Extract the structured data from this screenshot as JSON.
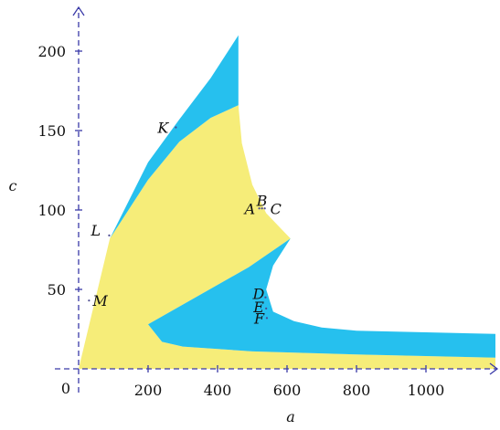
{
  "chart_data": {
    "type": "area",
    "xlabel": "a",
    "ylabel": "c",
    "xlim": [
      0,
      1200
    ],
    "ylim": [
      0,
      220
    ],
    "x_ticks": [
      200,
      400,
      600,
      800,
      1000
    ],
    "y_ticks": [
      50,
      100,
      150,
      200
    ],
    "origin_label": "0",
    "grid": false,
    "colors": {
      "yellow_region": "#f6ed79",
      "blue_region": "#26c0ee",
      "axis": "#3a3aa8"
    },
    "regions": [
      {
        "color": "yellow",
        "boundary": [
          [
            0,
            0
          ],
          [
            90,
            82
          ],
          [
            200,
            119
          ],
          [
            290,
            143
          ],
          [
            380,
            158
          ],
          [
            460,
            166
          ],
          [
            470,
            142
          ],
          [
            500,
            116
          ],
          [
            540,
            98
          ],
          [
            610,
            82
          ],
          [
            490,
            64
          ],
          [
            200,
            28
          ],
          [
            240,
            17
          ],
          [
            300,
            14
          ],
          [
            500,
            11
          ],
          [
            800,
            9
          ],
          [
            1200,
            7
          ],
          [
            1200,
            0
          ]
        ]
      },
      {
        "color": "blue",
        "boundary": [
          [
            90,
            82
          ],
          [
            200,
            130
          ],
          [
            290,
            157
          ],
          [
            380,
            183
          ],
          [
            460,
            210
          ],
          [
            460,
            166
          ],
          [
            380,
            158
          ],
          [
            290,
            143
          ],
          [
            200,
            119
          ]
        ]
      },
      {
        "color": "blue",
        "boundary": [
          [
            200,
            28
          ],
          [
            490,
            64
          ],
          [
            610,
            82
          ],
          [
            560,
            65
          ],
          [
            540,
            50
          ],
          [
            560,
            36
          ],
          [
            620,
            30
          ],
          [
            700,
            26
          ],
          [
            800,
            24
          ],
          [
            1000,
            23
          ],
          [
            1200,
            22
          ],
          [
            1200,
            7
          ],
          [
            800,
            9
          ],
          [
            500,
            11
          ],
          [
            300,
            14
          ],
          [
            240,
            17
          ]
        ]
      }
    ],
    "points": [
      {
        "label": "A",
        "x": 520,
        "y": 101
      },
      {
        "label": "B",
        "x": 528,
        "y": 101
      },
      {
        "label": "C",
        "x": 536,
        "y": 101
      },
      {
        "label": "D",
        "x": 538,
        "y": 45
      },
      {
        "label": "E",
        "x": 540,
        "y": 38
      },
      {
        "label": "F",
        "x": 542,
        "y": 32
      },
      {
        "label": "K",
        "x": 280,
        "y": 152
      },
      {
        "label": "L",
        "x": 88,
        "y": 84
      },
      {
        "label": "M",
        "x": 30,
        "y": 43
      }
    ]
  }
}
